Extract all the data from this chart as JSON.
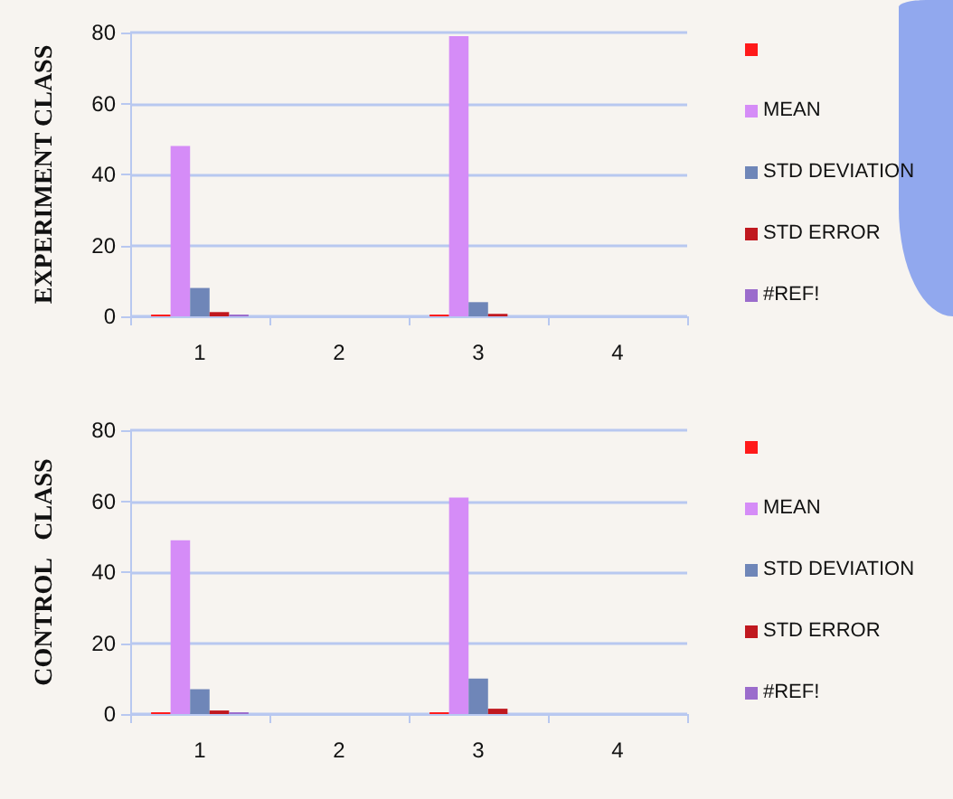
{
  "chart_data": [
    {
      "type": "bar",
      "ylabel": "EXPERIMENT CLASS",
      "categories": [
        "1",
        "2",
        "3",
        "4"
      ],
      "ylim": [
        0,
        80
      ],
      "yticks": [
        0,
        20,
        40,
        60,
        80
      ],
      "grid": "y",
      "legend": "right",
      "series": [
        {
          "color": "#ff1a1a",
          "values": [
            0.5,
            null,
            0.5,
            null
          ]
        },
        {
          "name": "MEAN",
          "color": "#d58cf7",
          "values": [
            48,
            null,
            79,
            null
          ]
        },
        {
          "name": "STD DEVIATION",
          "color": "#6f86b8",
          "values": [
            8,
            null,
            4,
            null
          ]
        },
        {
          "name": "STD ERROR",
          "color": "#c0181f",
          "values": [
            1.2,
            null,
            0.7,
            null
          ]
        },
        {
          "name": "#REF!",
          "color": "#9b6ccc",
          "values": [
            0.5,
            null,
            null,
            null
          ]
        }
      ]
    },
    {
      "type": "bar",
      "ylabel": "CONTROL   CLASS",
      "categories": [
        "1",
        "2",
        "3",
        "4"
      ],
      "ylim": [
        0,
        80
      ],
      "yticks": [
        0,
        20,
        40,
        60,
        80
      ],
      "grid": "y",
      "legend": "right",
      "series": [
        {
          "color": "#ff1a1a",
          "values": [
            0.5,
            null,
            0.5,
            null
          ]
        },
        {
          "name": "MEAN",
          "color": "#d58cf7",
          "values": [
            49,
            null,
            61,
            null
          ]
        },
        {
          "name": "STD DEVIATION",
          "color": "#6f86b8",
          "values": [
            7,
            null,
            10,
            null
          ]
        },
        {
          "name": "STD ERROR",
          "color": "#c0181f",
          "values": [
            1,
            null,
            1.5,
            null
          ]
        },
        {
          "name": "#REF!",
          "color": "#9b6ccc",
          "values": [
            0.5,
            null,
            null,
            null
          ]
        }
      ]
    }
  ]
}
